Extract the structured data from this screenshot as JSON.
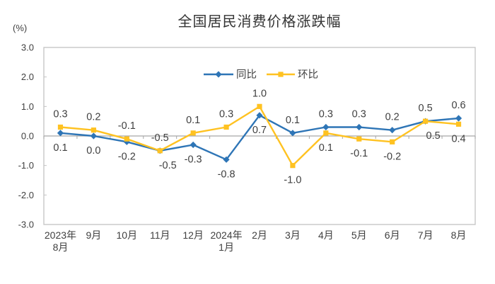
{
  "chart_data": {
    "type": "line",
    "title": "全国居民消费价格涨跌幅",
    "unit_label": "(%)",
    "categories": [
      [
        "2023年",
        "8月"
      ],
      [
        "9月"
      ],
      [
        "10月"
      ],
      [
        "11月"
      ],
      [
        "12月"
      ],
      [
        "2024年",
        "1月"
      ],
      [
        "2月"
      ],
      [
        "3月"
      ],
      [
        "4月"
      ],
      [
        "5月"
      ],
      [
        "6月"
      ],
      [
        "7月"
      ],
      [
        "8月"
      ]
    ],
    "series": [
      {
        "name": "同比",
        "marker": "diamond",
        "color": "#2E75B6",
        "values": [
          0.1,
          0.0,
          -0.2,
          -0.5,
          -0.3,
          -0.8,
          0.7,
          0.1,
          0.3,
          0.3,
          0.2,
          0.5,
          0.6
        ]
      },
      {
        "name": "环比",
        "marker": "square",
        "color": "#FFC221",
        "values": [
          0.3,
          0.2,
          -0.1,
          -0.5,
          0.1,
          0.3,
          1.0,
          -1.0,
          0.1,
          -0.1,
          -0.2,
          0.5,
          0.4
        ]
      }
    ],
    "ylim": [
      -3.0,
      3.0
    ],
    "ytick_labels": [
      "3.0",
      "2.0",
      "1.0",
      "0.0",
      "-1.0",
      "-2.0",
      "-3.0"
    ],
    "grid": false,
    "legend_position": "top-center-inside",
    "colors": {
      "plot_border": "#c3c3c3",
      "zero_axis": "#a6a6a6",
      "text": "#3f3f3f",
      "title_text": "#333333"
    }
  }
}
